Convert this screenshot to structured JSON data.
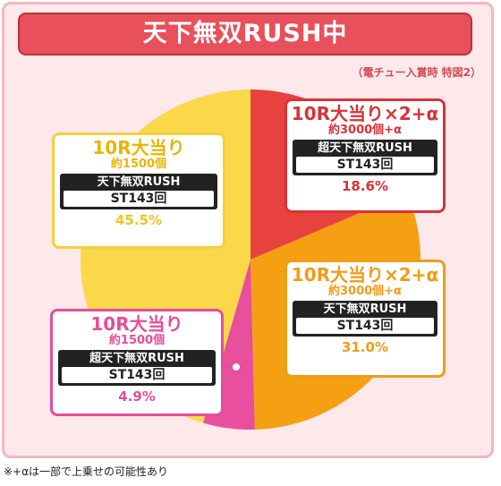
{
  "header": {
    "title": "天下無双RUSH中",
    "note": "（電チュー入賞時 特図2）"
  },
  "footnote": "※+αは一部で上乗せの可能性あり",
  "chart_data": {
    "type": "pie",
    "title": "天下無双RUSH中",
    "slices": [
      {
        "heading": "10R大当り×2+α",
        "payout": "約3000個+α",
        "mode": "超天下無双RUSH",
        "st": "ST143回",
        "value": 18.6,
        "label": "18.6%",
        "color": "#e8423f"
      },
      {
        "heading": "10R大当り×2+α",
        "payout": "約3000個+α",
        "mode": "天下無双RUSH",
        "st": "ST143回",
        "value": 31.0,
        "label": "31.0%",
        "color": "#f5a013"
      },
      {
        "heading": "10R大当り",
        "payout": "約1500個",
        "mode": "超天下無双RUSH",
        "st": "ST143回",
        "value": 4.9,
        "label": "4.9%",
        "color": "#e84f9c"
      },
      {
        "heading": "10R大当り",
        "payout": "約1500個",
        "mode": "天下無双RUSH",
        "st": "ST143回",
        "value": 45.5,
        "label": "45.5%",
        "color": "#fbd84a"
      }
    ]
  }
}
